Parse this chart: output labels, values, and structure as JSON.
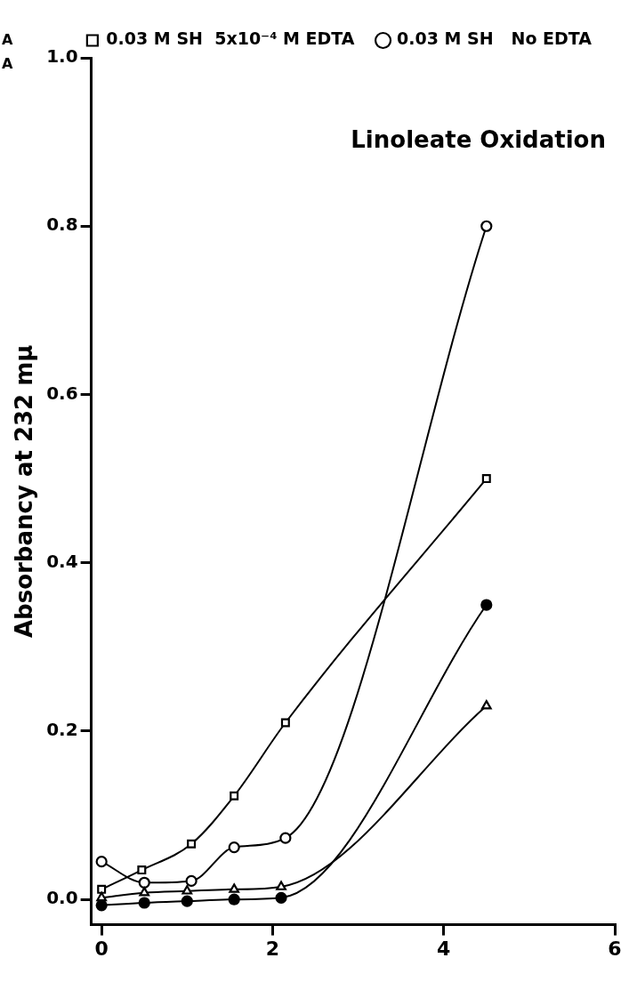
{
  "chart_data": {
    "type": "line",
    "title": "Linoleate Oxidation",
    "ylabel": "Absorbancy at 232 mμ",
    "annotations": [
      "A",
      "A"
    ],
    "xlim": [
      -0.12,
      6
    ],
    "xticks": [
      0,
      2,
      4,
      6
    ],
    "ylim": [
      -0.03,
      1.0
    ],
    "yticks": [
      {
        "value": 0,
        "label": "0.0"
      },
      0.2,
      0.4,
      0.6,
      0.8,
      {
        "value": 1,
        "label": "1.0"
      }
    ],
    "grid": false,
    "legend": "top right",
    "series": [
      {
        "name": "0.03 M SH  5x10⁻⁴ M EDTA",
        "color": "#000000",
        "marker": "square",
        "x": [
          0,
          0.47,
          1.05,
          1.55,
          2.15,
          4.5
        ],
        "values": [
          0.012,
          0.035,
          0.066,
          0.123,
          0.21,
          0.5
        ]
      },
      {
        "name": "0.03 M SH   No EDTA",
        "color": "#000000",
        "marker": "circle",
        "x": [
          0,
          0.5,
          1.05,
          1.55,
          2.15,
          4.5
        ],
        "values": [
          0.045,
          0.02,
          0.022,
          0.062,
          0.073,
          0.8
        ]
      },
      {
        "color": "#000000",
        "marker": "circle",
        "x": [
          0,
          0.5,
          1.0,
          1.55,
          2.1,
          4.5
        ],
        "values": [
          -0.007,
          -0.004,
          -0.002,
          0,
          0.002,
          0.35
        ]
      },
      {
        "color": "#000000",
        "marker": "triangle",
        "x": [
          0,
          0.5,
          1.0,
          1.55,
          2.1,
          4.5
        ],
        "values": [
          0.002,
          0.008,
          0.01,
          0.012,
          0.015,
          0.23
        ]
      }
    ]
  }
}
